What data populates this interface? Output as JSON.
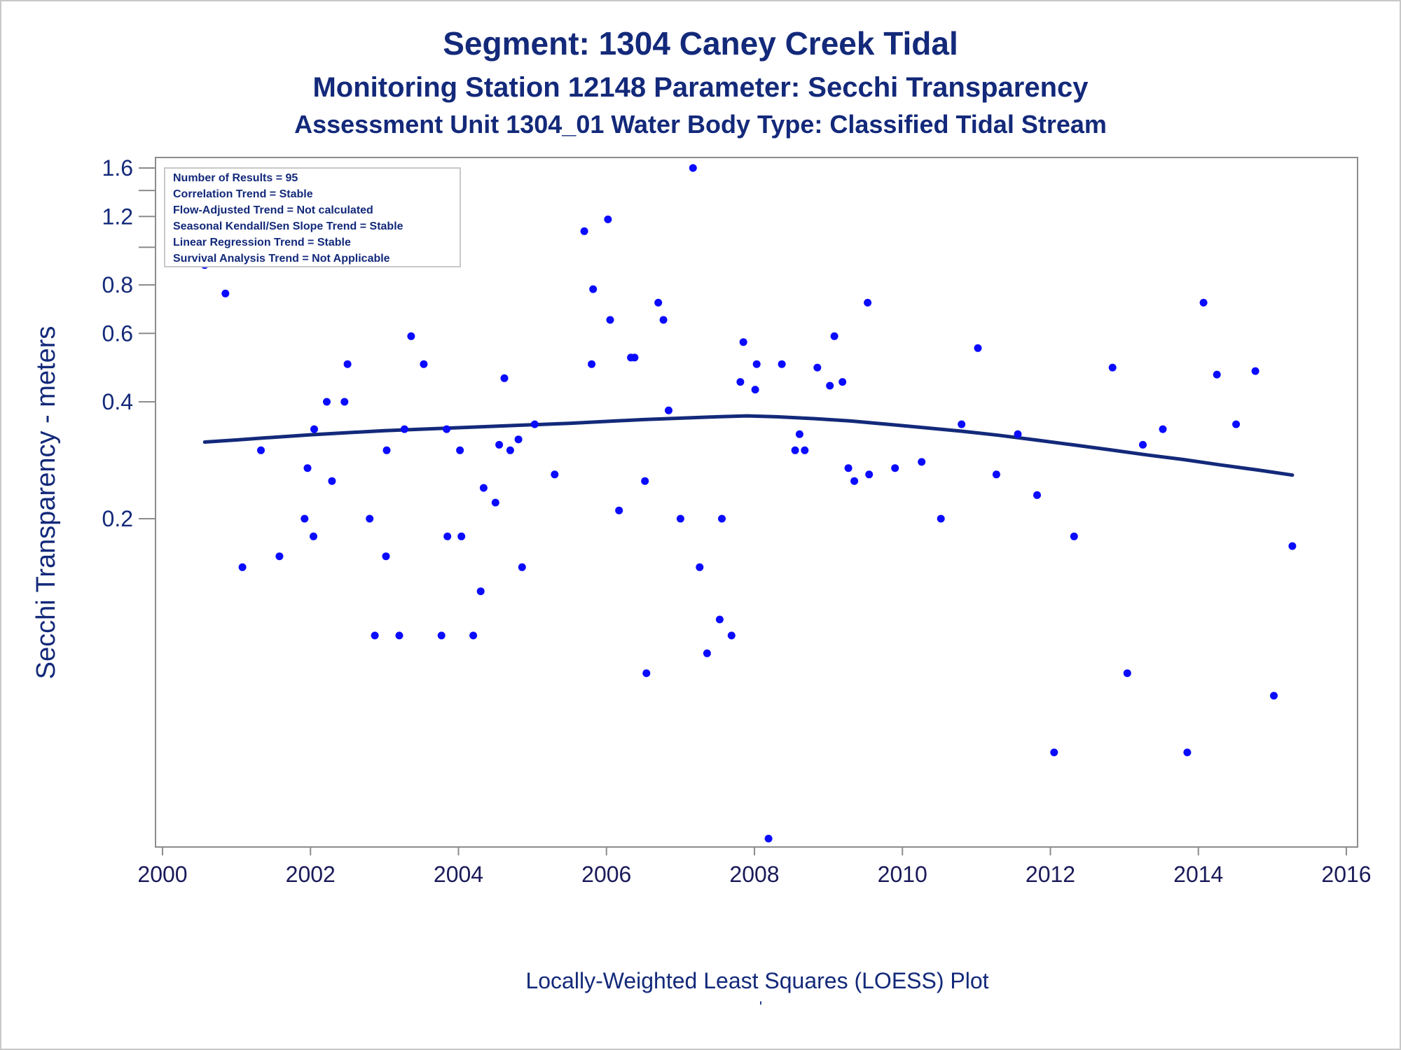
{
  "chart_data": {
    "type": "scatter",
    "title": "Segment: 1304  Caney Creek Tidal",
    "subtitle": "Monitoring Station 12148 Parameter: Secchi Transparency",
    "subtitle2": "Assessment Unit 1304_01   Water Body Type: Classified Tidal Stream",
    "ylabel": "Secchi Transparency - meters",
    "xlabel": "",
    "footnote": "Locally-Weighted Least Squares (LOESS) Plot",
    "footnote_mark": "'",
    "xlim": [
      2000,
      2016
    ],
    "ylim": [
      0.03,
      1.7
    ],
    "y_scale": "log",
    "x_ticks": [
      2000,
      2002,
      2004,
      2006,
      2008,
      2010,
      2012,
      2014,
      2016
    ],
    "x_tick_labels": [
      "2000",
      "2002",
      "2004",
      "2006",
      "2008",
      "2010",
      "2012",
      "2014",
      "2016"
    ],
    "y_ticks": [
      0.2,
      0.4,
      0.6,
      0.8,
      1.2,
      1.6
    ],
    "y_tick_labels": [
      "0.2",
      "0.4",
      "0.6",
      "0.8",
      "1.2",
      "1.6"
    ],
    "y_minor_ticks": [
      1.0,
      1.4
    ],
    "grid": false,
    "legend_placement": "top-left",
    "stats_box": [
      "Number of Results = 95",
      "Correlation Trend = Stable",
      "Flow-Adjusted Trend = Not calculated",
      "Seasonal Kendall/Sen Slope Trend = Stable",
      "Linear Regression Trend = Stable",
      "Survival Analysis Trend = Not Applicable"
    ],
    "colors": {
      "points": "#0a0aff",
      "loess": "#13297a",
      "text": "#13297a",
      "frame": "#8c8c8c"
    },
    "points": [
      {
        "x": 2000.57,
        "y": 0.9
      },
      {
        "x": 2000.85,
        "y": 0.76
      },
      {
        "x": 2001.08,
        "y": 0.15
      },
      {
        "x": 2001.33,
        "y": 0.3
      },
      {
        "x": 2001.58,
        "y": 0.16
      },
      {
        "x": 2001.92,
        "y": 0.2
      },
      {
        "x": 2001.96,
        "y": 0.27
      },
      {
        "x": 2002.04,
        "y": 0.18
      },
      {
        "x": 2002.05,
        "y": 0.34
      },
      {
        "x": 2002.22,
        "y": 0.4
      },
      {
        "x": 2002.29,
        "y": 0.25
      },
      {
        "x": 2002.46,
        "y": 0.4
      },
      {
        "x": 2002.5,
        "y": 0.5
      },
      {
        "x": 2002.8,
        "y": 0.2
      },
      {
        "x": 2002.87,
        "y": 0.1
      },
      {
        "x": 2003.02,
        "y": 0.16
      },
      {
        "x": 2003.03,
        "y": 0.3
      },
      {
        "x": 2003.2,
        "y": 0.1
      },
      {
        "x": 2003.27,
        "y": 0.34
      },
      {
        "x": 2003.36,
        "y": 0.59
      },
      {
        "x": 2003.53,
        "y": 0.5
      },
      {
        "x": 2003.77,
        "y": 0.1
      },
      {
        "x": 2003.84,
        "y": 0.34
      },
      {
        "x": 2003.85,
        "y": 0.18
      },
      {
        "x": 2004.02,
        "y": 0.3
      },
      {
        "x": 2004.04,
        "y": 0.18
      },
      {
        "x": 2004.2,
        "y": 0.1
      },
      {
        "x": 2004.3,
        "y": 0.13
      },
      {
        "x": 2004.34,
        "y": 0.24
      },
      {
        "x": 2004.5,
        "y": 0.22
      },
      {
        "x": 2004.55,
        "y": 0.31
      },
      {
        "x": 2004.62,
        "y": 0.46
      },
      {
        "x": 2004.7,
        "y": 0.3
      },
      {
        "x": 2004.81,
        "y": 0.32
      },
      {
        "x": 2004.86,
        "y": 0.15
      },
      {
        "x": 2005.03,
        "y": 0.35
      },
      {
        "x": 2005.3,
        "y": 0.26
      },
      {
        "x": 2005.7,
        "y": 1.1
      },
      {
        "x": 2005.8,
        "y": 0.5
      },
      {
        "x": 2005.82,
        "y": 0.78
      },
      {
        "x": 2006.02,
        "y": 1.18
      },
      {
        "x": 2006.05,
        "y": 0.65
      },
      {
        "x": 2006.17,
        "y": 0.21
      },
      {
        "x": 2006.33,
        "y": 0.52
      },
      {
        "x": 2006.38,
        "y": 0.52
      },
      {
        "x": 2006.52,
        "y": 0.25
      },
      {
        "x": 2006.54,
        "y": 0.08
      },
      {
        "x": 2006.7,
        "y": 0.72
      },
      {
        "x": 2006.77,
        "y": 0.65
      },
      {
        "x": 2006.84,
        "y": 0.38
      },
      {
        "x": 2007.0,
        "y": 0.2
      },
      {
        "x": 2007.17,
        "y": 1.6
      },
      {
        "x": 2007.26,
        "y": 0.15
      },
      {
        "x": 2007.36,
        "y": 0.09
      },
      {
        "x": 2007.53,
        "y": 0.11
      },
      {
        "x": 2007.56,
        "y": 0.2
      },
      {
        "x": 2007.69,
        "y": 0.1
      },
      {
        "x": 2007.81,
        "y": 0.45
      },
      {
        "x": 2007.85,
        "y": 0.57
      },
      {
        "x": 2008.01,
        "y": 0.43
      },
      {
        "x": 2008.03,
        "y": 0.5
      },
      {
        "x": 2008.19,
        "y": 0.03
      },
      {
        "x": 2008.37,
        "y": 0.5
      },
      {
        "x": 2008.55,
        "y": 0.3
      },
      {
        "x": 2008.61,
        "y": 0.33
      },
      {
        "x": 2008.68,
        "y": 0.3
      },
      {
        "x": 2008.85,
        "y": 0.49
      },
      {
        "x": 2009.02,
        "y": 0.44
      },
      {
        "x": 2009.08,
        "y": 0.59
      },
      {
        "x": 2009.19,
        "y": 0.45
      },
      {
        "x": 2009.27,
        "y": 0.27
      },
      {
        "x": 2009.35,
        "y": 0.25
      },
      {
        "x": 2009.53,
        "y": 0.72
      },
      {
        "x": 2009.55,
        "y": 0.26
      },
      {
        "x": 2009.9,
        "y": 0.27
      },
      {
        "x": 2010.26,
        "y": 0.28
      },
      {
        "x": 2010.52,
        "y": 0.2
      },
      {
        "x": 2010.8,
        "y": 0.35
      },
      {
        "x": 2011.02,
        "y": 0.55
      },
      {
        "x": 2011.27,
        "y": 0.26
      },
      {
        "x": 2011.56,
        "y": 0.33
      },
      {
        "x": 2011.82,
        "y": 0.23
      },
      {
        "x": 2012.05,
        "y": 0.05
      },
      {
        "x": 2012.32,
        "y": 0.18
      },
      {
        "x": 2012.84,
        "y": 0.49
      },
      {
        "x": 2013.04,
        "y": 0.08
      },
      {
        "x": 2013.25,
        "y": 0.31
      },
      {
        "x": 2013.52,
        "y": 0.34
      },
      {
        "x": 2013.85,
        "y": 0.05
      },
      {
        "x": 2014.07,
        "y": 0.72
      },
      {
        "x": 2014.25,
        "y": 0.47
      },
      {
        "x": 2014.51,
        "y": 0.35
      },
      {
        "x": 2014.77,
        "y": 0.48
      },
      {
        "x": 2015.02,
        "y": 0.07
      },
      {
        "x": 2015.27,
        "y": 0.17
      }
    ],
    "loess": {
      "x": [
        2000.57,
        2001.0,
        2001.5,
        2002.0,
        2002.5,
        2003.0,
        2003.5,
        2004.0,
        2004.5,
        2005.0,
        2005.5,
        2006.0,
        2006.5,
        2007.0,
        2007.5,
        2007.9,
        2008.3,
        2008.8,
        2009.3,
        2009.8,
        2010.3,
        2010.8,
        2011.3,
        2011.8,
        2012.3,
        2012.8,
        2013.3,
        2013.8,
        2014.3,
        2014.8,
        2015.27
      ],
      "y": [
        0.315,
        0.319,
        0.324,
        0.329,
        0.333,
        0.337,
        0.34,
        0.343,
        0.346,
        0.349,
        0.352,
        0.356,
        0.36,
        0.363,
        0.366,
        0.368,
        0.366,
        0.362,
        0.357,
        0.35,
        0.343,
        0.336,
        0.328,
        0.319,
        0.31,
        0.301,
        0.292,
        0.284,
        0.275,
        0.267,
        0.259
      ]
    }
  }
}
